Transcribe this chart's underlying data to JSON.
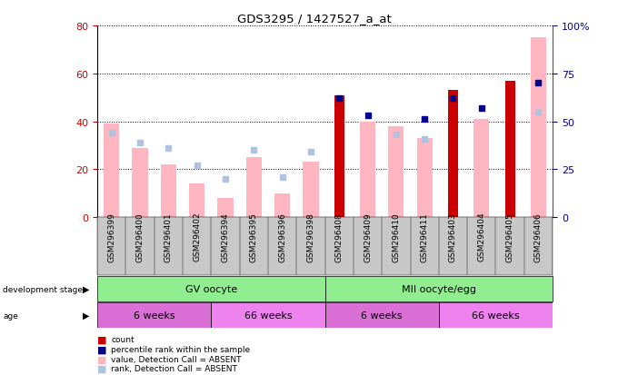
{
  "title": "GDS3295 / 1427527_a_at",
  "samples": [
    "GSM296399",
    "GSM296400",
    "GSM296401",
    "GSM296402",
    "GSM296394",
    "GSM296395",
    "GSM296396",
    "GSM296398",
    "GSM296408",
    "GSM296409",
    "GSM296410",
    "GSM296411",
    "GSM296403",
    "GSM296404",
    "GSM296405",
    "GSM296406"
  ],
  "count": [
    null,
    null,
    null,
    null,
    null,
    null,
    null,
    null,
    51,
    null,
    null,
    null,
    53,
    null,
    57,
    null
  ],
  "percentile_rank": [
    null,
    null,
    null,
    null,
    null,
    null,
    null,
    null,
    62,
    53,
    null,
    51,
    62,
    57,
    null,
    70
  ],
  "value_absent": [
    39,
    29,
    22,
    14,
    8,
    25,
    10,
    23,
    null,
    40,
    38,
    33,
    null,
    41,
    null,
    75
  ],
  "rank_absent": [
    44,
    39,
    36,
    27,
    20,
    35,
    21,
    34,
    null,
    null,
    43,
    41,
    null,
    null,
    null,
    55
  ],
  "left_ylim": [
    0,
    80
  ],
  "right_ylim": [
    0,
    100
  ],
  "left_yticks": [
    0,
    20,
    40,
    60,
    80
  ],
  "right_yticks": [
    0,
    25,
    50,
    75,
    100
  ],
  "right_yticklabels": [
    "0",
    "25",
    "50",
    "75",
    "100%"
  ],
  "count_color": "#cc0000",
  "percentile_color": "#00008b",
  "value_absent_color": "#ffb6c1",
  "rank_absent_color": "#b0c4de",
  "dev_stage_color": "#90ee90",
  "age_color_6w": "#da70d6",
  "age_color_66w": "#ee82ee",
  "gray_bg": "#c8c8c8"
}
